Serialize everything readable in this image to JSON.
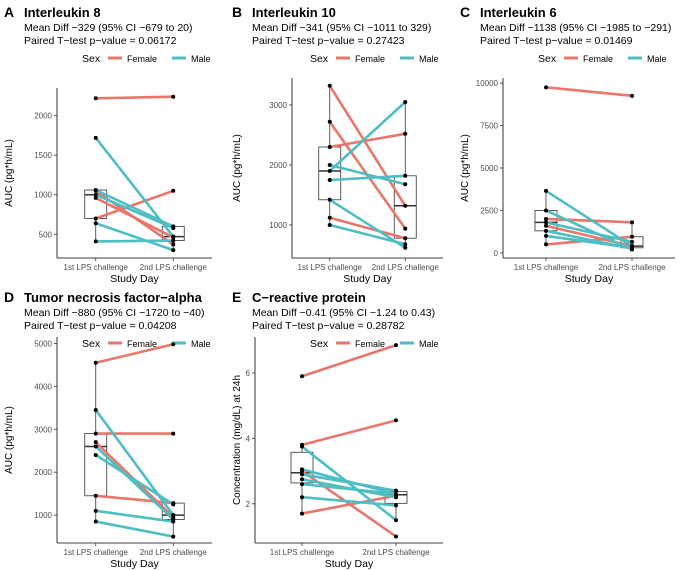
{
  "figure": {
    "legend_title": "Sex",
    "legend_female": "Female",
    "legend_male": "Male",
    "colors": {
      "Female": "#E8766B",
      "Male": "#4EBEC4"
    }
  },
  "chart_data": [
    {
      "panel_letter": "A",
      "type": "line",
      "title": "Interleukin 8",
      "subtitle_line1": "Mean Diff −329 (95% CI −679 to 20)",
      "subtitle_line2": "Paired T−test p−value = 0.06172",
      "xlabel": "Study Day",
      "ylabel": "AUC (pg*h/mL)",
      "categories": [
        "1st LPS challenge",
        "2nd LPS challenge"
      ],
      "ylim": [
        200,
        2350
      ],
      "yticks": [
        500,
        1000,
        1500,
        2000
      ],
      "ytick_labels": [
        "500",
        "1000",
        "1500",
        "2000"
      ],
      "series": [
        {
          "sex": "Female",
          "values": [
            2220,
            2240
          ]
        },
        {
          "sex": "Female",
          "values": [
            1050,
            370
          ]
        },
        {
          "sex": "Female",
          "values": [
            700,
            1050
          ]
        },
        {
          "sex": "Female",
          "values": [
            960,
            460
          ]
        },
        {
          "sex": "Male",
          "values": [
            1720,
            470
          ]
        },
        {
          "sex": "Male",
          "values": [
            1060,
            600
          ]
        },
        {
          "sex": "Male",
          "values": [
            640,
            300
          ]
        },
        {
          "sex": "Male",
          "values": [
            410,
            420
          ]
        },
        {
          "sex": "Male",
          "values": [
            1000,
            580
          ]
        }
      ]
    },
    {
      "panel_letter": "B",
      "type": "line",
      "title": "Interleukin 10",
      "subtitle_line1": "Mean Diff −341 (95% CI −1011 to 329)",
      "subtitle_line2": "Paired T−test p−value = 0.27423",
      "xlabel": "Study Day",
      "ylabel": "AUC (pg*h/mL)",
      "categories": [
        "1st LPS challenge",
        "2nd LPS challenge"
      ],
      "ylim": [
        450,
        3450
      ],
      "yticks": [
        1000,
        2000,
        3000
      ],
      "ytick_labels": [
        "1000",
        "2000",
        "3000"
      ],
      "series": [
        {
          "sex": "Female",
          "values": [
            3320,
            1320
          ]
        },
        {
          "sex": "Female",
          "values": [
            2720,
            940
          ]
        },
        {
          "sex": "Female",
          "values": [
            2300,
            2520
          ]
        },
        {
          "sex": "Female",
          "values": [
            1120,
            780
          ]
        },
        {
          "sex": "Male",
          "values": [
            1900,
            3050
          ]
        },
        {
          "sex": "Male",
          "values": [
            2000,
            1680
          ]
        },
        {
          "sex": "Male",
          "values": [
            1750,
            1820
          ]
        },
        {
          "sex": "Male",
          "values": [
            1420,
            620
          ]
        },
        {
          "sex": "Male",
          "values": [
            1000,
            680
          ]
        }
      ]
    },
    {
      "panel_letter": "C",
      "type": "line",
      "title": "Interleukin 6",
      "subtitle_line1": "Mean Diff −1138 (95% CI −1985 to −291)",
      "subtitle_line2": "Paired T−test p−value = 0.01469",
      "xlabel": "Study Day",
      "ylabel": "AUC (pg*h/mL)",
      "categories": [
        "1st LPS challenge",
        "2nd LPS challenge"
      ],
      "ylim": [
        -300,
        10300
      ],
      "yticks": [
        0,
        2500,
        5000,
        7500,
        10000
      ],
      "ytick_labels": [
        "0",
        "2500",
        "5000",
        "7500",
        "10000"
      ],
      "series": [
        {
          "sex": "Female",
          "values": [
            9750,
            9250
          ]
        },
        {
          "sex": "Female",
          "values": [
            2000,
            1800
          ]
        },
        {
          "sex": "Female",
          "values": [
            1600,
            400
          ]
        },
        {
          "sex": "Female",
          "values": [
            500,
            950
          ]
        },
        {
          "sex": "Male",
          "values": [
            3650,
            400
          ]
        },
        {
          "sex": "Male",
          "values": [
            2500,
            200
          ]
        },
        {
          "sex": "Male",
          "values": [
            1800,
            650
          ]
        },
        {
          "sex": "Male",
          "values": [
            1300,
            250
          ]
        },
        {
          "sex": "Male",
          "values": [
            1000,
            300
          ]
        }
      ]
    },
    {
      "panel_letter": "D",
      "type": "line",
      "title": "Tumor necrosis factor−alpha",
      "subtitle_line1": "Mean Diff −880 (95% CI −1720 to −40)",
      "subtitle_line2": "Paired T−test p−value = 0.04208",
      "xlabel": "Study Day",
      "ylabel": "AUC (pg*h/mL)",
      "categories": [
        "1st LPS challenge",
        "2nd LPS challenge"
      ],
      "ylim": [
        350,
        5150
      ],
      "yticks": [
        1000,
        2000,
        3000,
        4000,
        5000
      ],
      "ytick_labels": [
        "1000",
        "2000",
        "3000",
        "4000",
        "5000"
      ],
      "series": [
        {
          "sex": "Female",
          "values": [
            4550,
            4980
          ]
        },
        {
          "sex": "Female",
          "values": [
            2900,
            2900
          ]
        },
        {
          "sex": "Female",
          "values": [
            2700,
            950
          ]
        },
        {
          "sex": "Female",
          "values": [
            1450,
            1280
          ]
        },
        {
          "sex": "Male",
          "values": [
            3450,
            1000
          ]
        },
        {
          "sex": "Male",
          "values": [
            2600,
            900
          ]
        },
        {
          "sex": "Male",
          "values": [
            2400,
            1250
          ]
        },
        {
          "sex": "Male",
          "values": [
            1100,
            850
          ]
        },
        {
          "sex": "Male",
          "values": [
            850,
            500
          ]
        }
      ]
    },
    {
      "panel_letter": "E",
      "type": "line",
      "title": "C−reactive protein",
      "subtitle_line1": "Mean Diff −0.41 (95% CI −1.24 to 0.43)",
      "subtitle_line2": "Paired T−test p−value = 0.28782",
      "xlabel": "Study Day",
      "ylabel": "Concentration (mg/dL) at 24h",
      "categories": [
        "1st LPS challenge",
        "2nd LPS challenge"
      ],
      "ylim": [
        0.8,
        7.1
      ],
      "yticks": [
        2,
        4,
        6
      ],
      "ytick_labels": [
        "2",
        "4",
        "6"
      ],
      "series": [
        {
          "sex": "Female",
          "values": [
            5.9,
            6.85
          ]
        },
        {
          "sex": "Female",
          "values": [
            3.8,
            4.55
          ]
        },
        {
          "sex": "Female",
          "values": [
            3.0,
            1.0
          ]
        },
        {
          "sex": "Female",
          "values": [
            1.7,
            2.25
          ]
        },
        {
          "sex": "Male",
          "values": [
            3.75,
            1.5
          ]
        },
        {
          "sex": "Male",
          "values": [
            3.05,
            2.3
          ]
        },
        {
          "sex": "Male",
          "values": [
            2.9,
            2.4
          ]
        },
        {
          "sex": "Male",
          "values": [
            2.75,
            2.2
          ]
        },
        {
          "sex": "Male",
          "values": [
            2.6,
            2.3
          ]
        },
        {
          "sex": "Male",
          "values": [
            2.2,
            1.95
          ]
        }
      ]
    }
  ]
}
